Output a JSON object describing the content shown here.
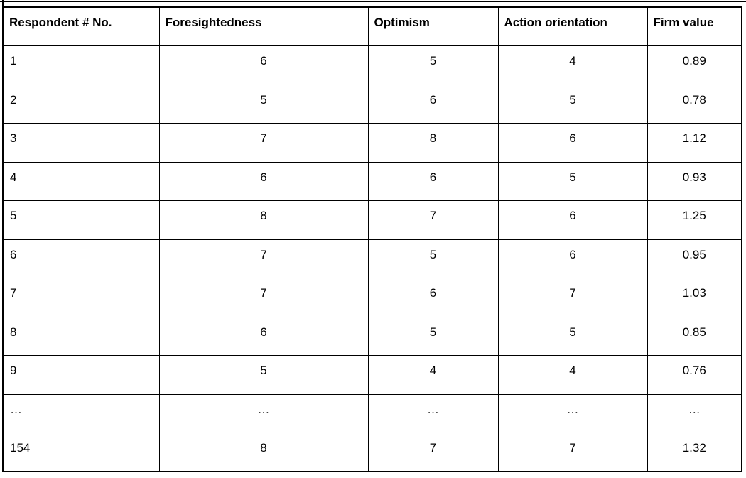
{
  "page": {
    "background_color": "#ffffff",
    "border_color": "#000000",
    "text_color": "#000000"
  },
  "table": {
    "columns": [
      "Respondent # No.",
      "Foresightedness",
      "Optimism",
      "Action orientation",
      "Firm value"
    ],
    "rows": [
      [
        "1",
        "6",
        "5",
        "4",
        "0.89"
      ],
      [
        "2",
        "5",
        "6",
        "5",
        "0.78"
      ],
      [
        "3",
        "7",
        "8",
        "6",
        "1.12"
      ],
      [
        "4",
        "6",
        "6",
        "5",
        "0.93"
      ],
      [
        "5",
        "8",
        "7",
        "6",
        "1.25"
      ],
      [
        "6",
        "7",
        "5",
        "6",
        "0.95"
      ],
      [
        "7",
        "7",
        "6",
        "7",
        "1.03"
      ],
      [
        "8",
        "6",
        "5",
        "5",
        "0.85"
      ],
      [
        "9",
        "5",
        "4",
        "4",
        "0.76"
      ],
      [
        "…",
        "…",
        "…",
        "…",
        "…"
      ],
      [
        "154",
        "8",
        "7",
        "7",
        "1.32"
      ]
    ]
  }
}
